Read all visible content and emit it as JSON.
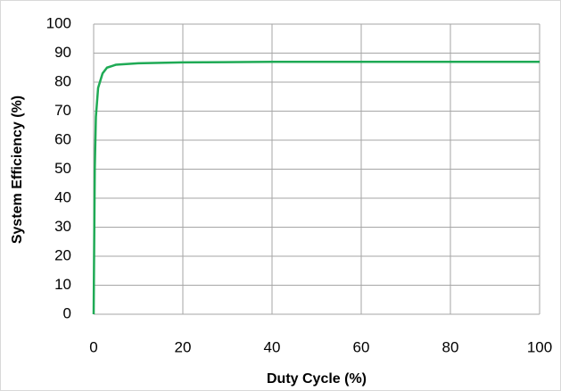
{
  "chart_data": {
    "type": "line",
    "xlabel": "Duty Cycle (%)",
    "ylabel": "System Efficiency (%)",
    "x": [
      0,
      0.25,
      0.5,
      1,
      2,
      3,
      5,
      10,
      20,
      40,
      60,
      100
    ],
    "series": [
      {
        "name": "System Efficiency",
        "color": "#1faa55",
        "values": [
          0,
          50,
          68,
          78,
          83,
          85,
          86,
          86.5,
          86.8,
          87,
          87,
          87
        ]
      }
    ],
    "xlim": [
      0,
      100
    ],
    "xticks": [
      0,
      20,
      40,
      60,
      80,
      100
    ],
    "ylim": [
      0,
      100
    ],
    "yticks": [
      0,
      10,
      20,
      30,
      40,
      50,
      60,
      70,
      80,
      90,
      100
    ],
    "grid": true
  }
}
